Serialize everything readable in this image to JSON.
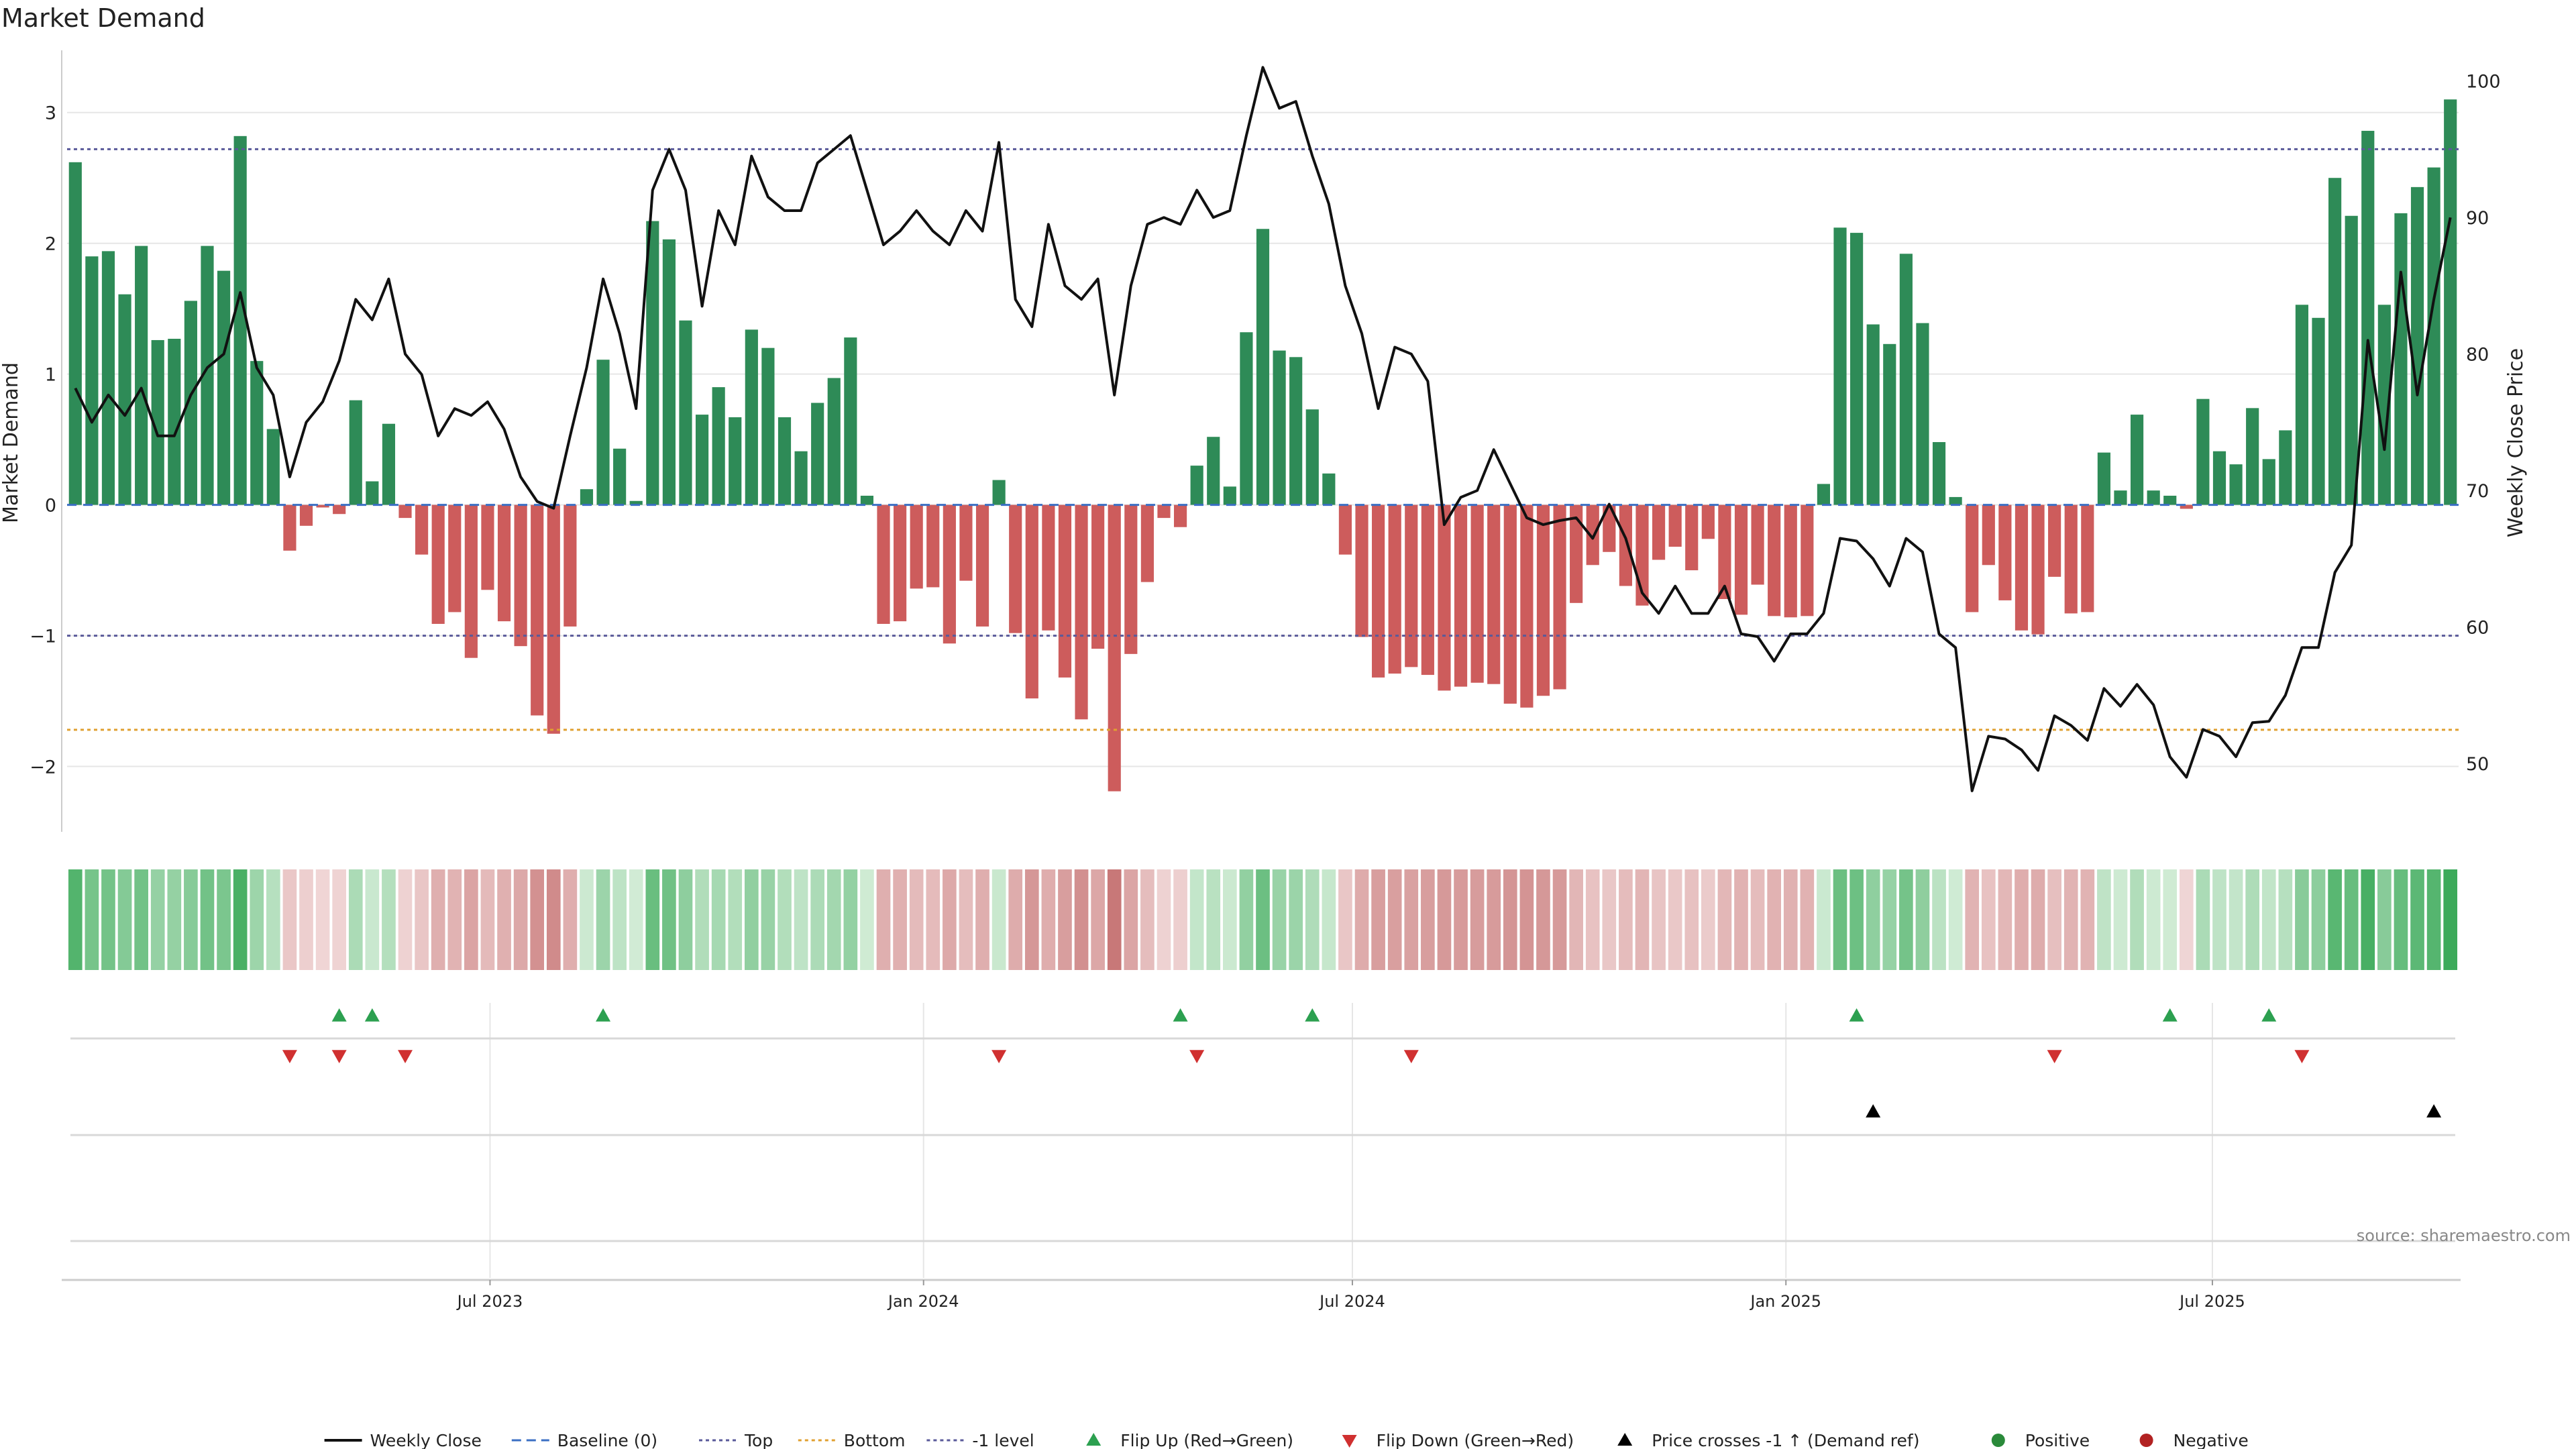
{
  "chart_data": {
    "type": "bar",
    "title": "Market Demand",
    "y_left_label": "Market Demand",
    "y_right_label": "Weekly Close Price",
    "y_left_range": [
      -2.5,
      3.45
    ],
    "y_right_range": [
      45,
      102
    ],
    "y_left_ticks": [
      -2,
      -1,
      0,
      1,
      2,
      3
    ],
    "y_left_tick_labels": [
      "−2",
      "−1",
      "0",
      "1",
      "2",
      "3"
    ],
    "y_right_ticks": [
      50,
      60,
      70,
      80,
      90,
      100
    ],
    "x_ticks": [
      {
        "date": "2023-07-01",
        "label": "Jul 2023"
      },
      {
        "date": "2024-01-01",
        "label": "Jan 2024"
      },
      {
        "date": "2024-07-01",
        "label": "Jul 2024"
      },
      {
        "date": "2025-01-01",
        "label": "Jan 2025"
      },
      {
        "date": "2025-07-01",
        "label": "Jul 2025"
      }
    ],
    "reference_lines": [
      {
        "name": "Top",
        "value": 2.72,
        "color": "#5a5a9a"
      },
      {
        "name": "Bottom",
        "value": -1.72,
        "color": "#e0a030"
      },
      {
        "name": "-1 level",
        "value": -1.0,
        "color": "#5a5a9a"
      },
      {
        "name": "Baseline (0)",
        "value": 0,
        "color": "#3b6fc4"
      }
    ],
    "series": [
      {
        "name": "Market Demand",
        "start_date": "2023-01-06",
        "interval_days": 7,
        "values": [
          2.62,
          1.9,
          1.94,
          1.61,
          1.98,
          1.26,
          1.27,
          1.56,
          1.98,
          1.79,
          2.82,
          1.1,
          0.58,
          -0.35,
          -0.16,
          -0.02,
          -0.07,
          0.8,
          0.18,
          0.62,
          -0.1,
          -0.38,
          -0.91,
          -0.82,
          -1.17,
          -0.65,
          -0.89,
          -1.08,
          -1.61,
          -1.75,
          -0.93,
          0.12,
          1.11,
          0.43,
          0.03,
          2.17,
          2.03,
          1.41,
          0.69,
          0.9,
          0.67,
          1.34,
          1.2,
          0.67,
          0.41,
          0.78,
          0.97,
          1.28,
          0.07,
          -0.91,
          -0.89,
          -0.64,
          -0.63,
          -1.06,
          -0.58,
          -0.93,
          0.19,
          -0.98,
          -1.48,
          -0.96,
          -1.32,
          -1.64,
          -1.1,
          -2.19,
          -1.14,
          -0.59,
          -0.1,
          -0.17,
          0.3,
          0.52,
          0.14,
          1.32,
          2.11,
          1.18,
          1.13,
          0.73,
          0.24,
          -0.38,
          -1.01,
          -1.32,
          -1.29,
          -1.24,
          -1.3,
          -1.42,
          -1.39,
          -1.36,
          -1.37,
          -1.52,
          -1.55,
          -1.46,
          -1.41,
          -0.75,
          -0.46,
          -0.36,
          -0.62,
          -0.77,
          -0.42,
          -0.32,
          -0.5,
          -0.26,
          -0.72,
          -0.84,
          -0.61,
          -0.85,
          -0.86,
          -0.85,
          0.16,
          2.12,
          2.08,
          1.38,
          1.23,
          1.92,
          1.39,
          0.48,
          0.06,
          -0.82,
          -0.46,
          -0.73,
          -0.96,
          -0.99,
          -0.55,
          -0.83,
          -0.82,
          0.4,
          0.11,
          0.69,
          0.11,
          0.07,
          -0.03,
          0.81,
          0.41,
          0.31,
          0.74,
          0.35,
          0.57,
          1.53,
          1.43,
          2.5,
          2.21,
          2.86,
          1.53,
          2.23,
          2.43,
          2.58,
          3.1
        ]
      },
      {
        "name": "Weekly Close",
        "start_date": "2023-01-06",
        "interval_days": 7,
        "values": [
          77.5,
          75,
          77,
          75.5,
          77.5,
          74,
          74,
          77,
          79,
          80,
          84.5,
          79,
          77,
          71,
          75,
          76.5,
          79.5,
          84,
          82.5,
          85.5,
          80,
          78.5,
          74,
          76,
          75.5,
          76.5,
          74.5,
          71,
          69.2,
          68.7,
          74,
          79,
          85.5,
          81.5,
          76,
          92,
          95,
          92,
          83.5,
          90.5,
          88,
          94.5,
          91.5,
          90.5,
          90.5,
          94,
          95,
          96,
          92,
          88,
          89,
          90.5,
          89,
          88,
          90.5,
          89,
          95.5,
          84,
          82,
          89.5,
          85,
          84,
          85.5,
          77,
          85,
          89.5,
          90,
          89.5,
          92,
          90,
          90.5,
          96,
          101,
          98,
          98.5,
          94.5,
          91,
          85,
          81.5,
          76,
          80.5,
          80,
          78,
          67.5,
          69.5,
          70,
          73,
          70.5,
          68,
          67.5,
          67.8,
          68,
          66.5,
          69,
          66.5,
          62.5,
          61,
          63,
          61,
          61,
          63,
          59.5,
          59.3,
          57.5,
          59.5,
          59.5,
          61,
          66.5,
          66.3,
          65,
          63,
          66.5,
          65.5,
          59.5,
          58.5,
          48,
          52,
          51.8,
          51,
          49.5,
          53.5,
          52.8,
          51.7,
          55.5,
          54.2,
          55.8,
          54.3,
          50.5,
          49,
          52.5,
          52,
          50.5,
          53,
          53.1,
          55,
          58.5,
          58.5,
          64,
          66,
          81,
          73,
          86,
          77,
          84,
          90
        ]
      }
    ],
    "strip": {
      "name": "Demand intensity",
      "note": "one cell per week, colour from Market Demand sign and magnitude"
    },
    "markers": {
      "flip_up_dates": [
        "2023-04-28",
        "2023-05-12",
        "2023-08-18",
        "2024-04-19",
        "2024-06-14",
        "2025-01-31",
        "2025-06-13",
        "2025-07-25"
      ],
      "flip_down_dates": [
        "2023-04-07",
        "2023-04-28",
        "2023-05-26",
        "2024-02-02",
        "2024-04-26",
        "2024-07-26",
        "2025-04-25",
        "2025-08-08"
      ],
      "price_cross_dates": [
        "2025-02-07",
        "2025-10-03"
      ]
    },
    "legend": {
      "position": "bottom-center",
      "items": [
        {
          "label": "Weekly Close",
          "kind": "line",
          "color": "#111111"
        },
        {
          "label": "Baseline (0)",
          "kind": "dash",
          "color": "#3b6fc4"
        },
        {
          "label": "Top",
          "kind": "dot",
          "color": "#5a5a9a"
        },
        {
          "label": "Bottom",
          "kind": "dot",
          "color": "#e0a030"
        },
        {
          "label": "-1 level",
          "kind": "dot",
          "color": "#5a5a9a"
        },
        {
          "label": "Flip Up (Red→Green)",
          "kind": "triangle-up",
          "color": "#2ca050"
        },
        {
          "label": "Flip Down (Green→Red)",
          "kind": "triangle-down",
          "color": "#d03030"
        },
        {
          "label": "Price crosses -1 ↑ (Demand ref)",
          "kind": "triangle-up",
          "color": "#000000"
        },
        {
          "label": "Positive",
          "kind": "circle",
          "color": "#2a8a3a"
        },
        {
          "label": "Negative",
          "kind": "circle",
          "color": "#b22222"
        }
      ]
    },
    "colors": {
      "positive_bar": "#2e8b57",
      "negative_bar": "#cd5c5c",
      "grid": "#e6e6e6",
      "axis": "#cccccc"
    },
    "source": "source: sharemaestro.com"
  }
}
